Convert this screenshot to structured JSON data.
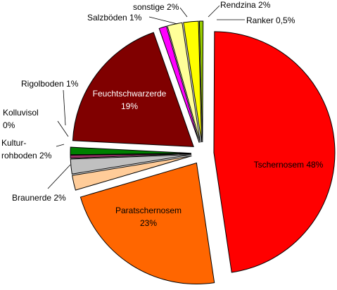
{
  "chart_data": {
    "type": "pie",
    "title": "",
    "slices": [
      {
        "lines": [
          "Tschernosem 48%"
        ],
        "value": 48,
        "color": "#ff0000"
      },
      {
        "lines": [
          "Paratschernosem",
          "23%"
        ],
        "value": 23,
        "color": "#ff6600"
      },
      {
        "lines": [
          "Braunerde 2%"
        ],
        "value": 2,
        "color": "#ffcc99"
      },
      {
        "lines": [
          "Kultur-",
          "rohboden 2%"
        ],
        "value": 2,
        "color": "#c0c0c0"
      },
      {
        "lines": [
          "Kolluvisol",
          "0%"
        ],
        "value": 0.4,
        "color": "#993366"
      },
      {
        "lines": [
          "Rigolboden 1%"
        ],
        "value": 1,
        "color": "#008000"
      },
      {
        "lines": [
          "Feuchtschwarzerde",
          "19%"
        ],
        "value": 19,
        "color": "#800000"
      },
      {
        "lines": [
          "Salzböden 1%"
        ],
        "value": 1,
        "color": "#ff00ff"
      },
      {
        "lines": [
          "sonstige 2%"
        ],
        "value": 2,
        "color": "#ffff99"
      },
      {
        "lines": [
          "Rendzina 2%"
        ],
        "value": 2,
        "color": "#ffff00"
      },
      {
        "lines": [
          "Ranker 0,5%"
        ],
        "value": 0.5,
        "color": "#99cc00"
      }
    ]
  }
}
